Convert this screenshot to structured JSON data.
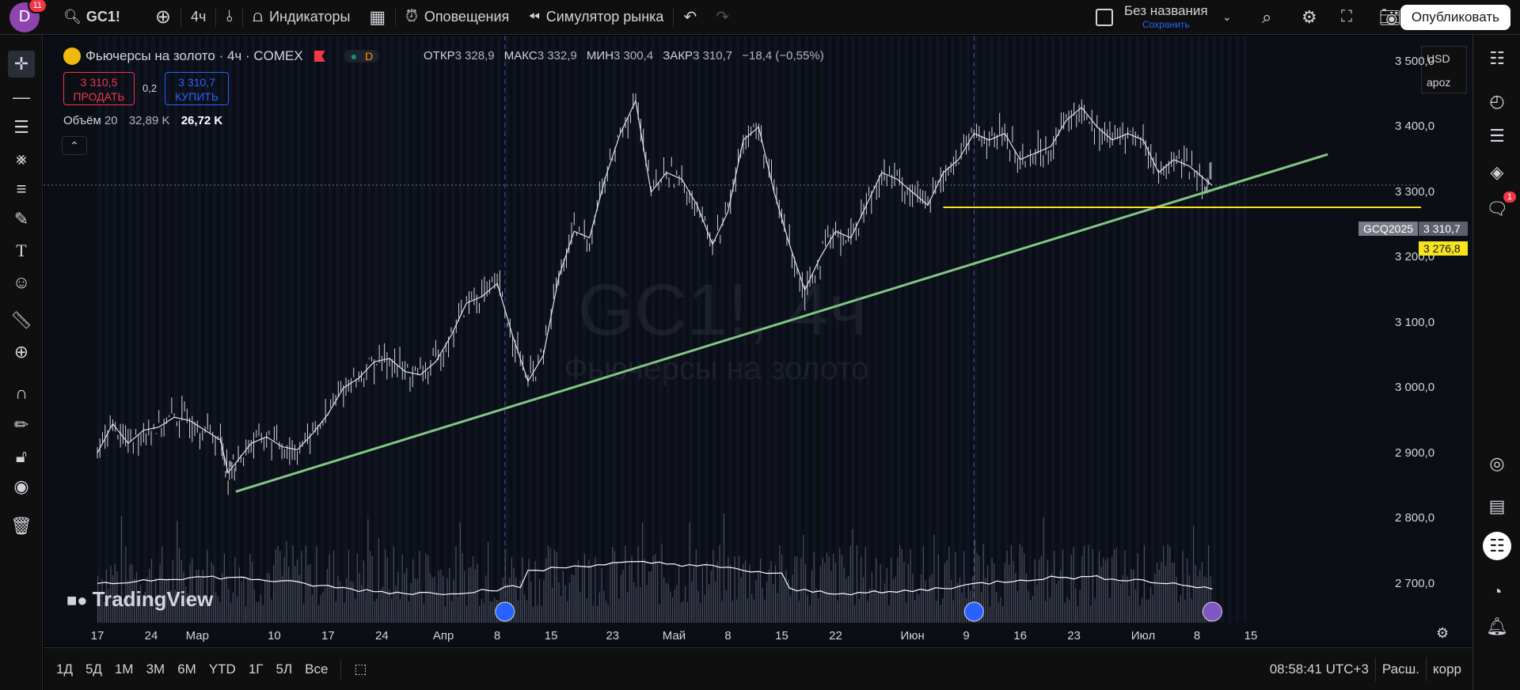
{
  "topbar": {
    "avatar_letter": "D",
    "avatar_badge": "11",
    "symbol": "GC1!",
    "interval": "4ч",
    "indicators_label": "Индикаторы",
    "alerts_label": "Оповещения",
    "replay_label": "Симулятор рынка",
    "layout_name": "Без названия",
    "save_label": "Сохранить",
    "publish_label": "Опубликовать"
  },
  "legend": {
    "title": "Фьючерсы на золото · 4ч · COMEX",
    "d_badge": "D",
    "open_label": "ОТКР",
    "open_value": "3 328,9",
    "high_label": "МАКС",
    "high_value": "3 332,9",
    "low_label": "МИН",
    "low_value": "3 300,4",
    "close_label": "ЗАКР",
    "close_value": "3 310,7",
    "change": "−18,4 (−0,55%)",
    "sell_price": "3 310,5",
    "sell_label": "ПРОДАТЬ",
    "spread": "0,2",
    "buy_price": "3 310,7",
    "buy_label": "КУПИТЬ",
    "volume_label": "Объём",
    "volume_len": "20",
    "volume_ma": "32,89 K",
    "volume_value": "26,72 K"
  },
  "currency": {
    "currency": "USD",
    "mode": "apoz"
  },
  "watermark": {
    "line1": "GC1!, 4ч",
    "line2": "Фьючерсы на золото"
  },
  "brand": "TradingView",
  "chart_data": {
    "type": "line",
    "symbol": "GC1!",
    "y_ticks": [
      "3 500,0",
      "3 400,0",
      "3 300,0",
      "3 200,0",
      "3 100,0",
      "3 000,0",
      "2 900,0",
      "2 800,0",
      "2 700,0"
    ],
    "y_tick_values": [
      3500,
      3400,
      3300,
      3200,
      3100,
      3000,
      2900,
      2800,
      2700
    ],
    "x_ticks": [
      "17",
      "24",
      "Мар",
      "10",
      "17",
      "24",
      "Апр",
      "8",
      "15",
      "23",
      "Май",
      "8",
      "15",
      "22",
      "Июн",
      "9",
      "16",
      "23",
      "Июл",
      "8",
      "15"
    ],
    "ylim": [
      2640,
      3540
    ],
    "x_range_days": [
      0,
      150
    ],
    "x_tick_days": [
      8,
      15,
      21,
      31,
      38,
      45,
      53,
      60,
      67,
      75,
      83,
      90,
      97,
      104,
      114,
      121,
      128,
      135,
      144,
      151,
      158
    ],
    "series": [
      {
        "x": [
          0,
          2,
          4,
          6,
          8,
          10,
          12,
          14,
          16,
          17,
          18,
          20,
          22,
          24,
          26,
          28,
          30,
          32,
          34,
          36,
          38,
          40,
          42,
          44,
          46,
          48,
          50,
          52,
          54,
          56,
          58,
          60,
          62,
          64,
          66,
          68,
          70,
          72,
          74,
          76,
          78,
          80,
          82,
          84,
          86,
          88,
          90,
          92,
          94,
          96,
          98,
          100,
          102,
          104,
          106,
          108,
          110,
          112,
          114,
          116,
          118,
          120,
          122,
          124,
          126,
          128,
          130,
          132,
          134,
          136,
          138,
          140,
          142,
          144,
          145
        ],
        "values": [
          2900,
          2945,
          2915,
          2935,
          2940,
          2955,
          2950,
          2935,
          2920,
          2870,
          2885,
          2915,
          2925,
          2910,
          2905,
          2930,
          2960,
          3000,
          3015,
          3040,
          3045,
          3025,
          3020,
          3040,
          3080,
          3130,
          3140,
          3160,
          3080,
          3010,
          3050,
          3170,
          3240,
          3230,
          3320,
          3390,
          3440,
          3300,
          3330,
          3320,
          3280,
          3220,
          3270,
          3380,
          3400,
          3300,
          3220,
          3150,
          3200,
          3240,
          3230,
          3280,
          3330,
          3320,
          3300,
          3280,
          3330,
          3350,
          3390,
          3380,
          3390,
          3350,
          3360,
          3370,
          3410,
          3430,
          3400,
          3380,
          3390,
          3380,
          3330,
          3350,
          3340,
          3320,
          3310
        ]
      }
    ],
    "annotations": [
      {
        "type": "trendline",
        "from": [
          18,
          2841
        ],
        "to": [
          160,
          3358
        ]
      },
      {
        "type": "horizontal",
        "from_x": 110,
        "price": 3276.8,
        "label": "3 276,8"
      }
    ],
    "last_price": {
      "label": "GCQ2025",
      "value": "3 310,7",
      "price": 3310.7
    },
    "grid": false
  },
  "bottombar": {
    "ranges": [
      "1Д",
      "5Д",
      "1М",
      "3М",
      "6М",
      "YTD",
      "1Г",
      "5Л",
      "Все"
    ],
    "time": "08:58:41 UTC+3",
    "session": "Расш.",
    "adjust": "корр"
  },
  "right_alert_badge": "1"
}
